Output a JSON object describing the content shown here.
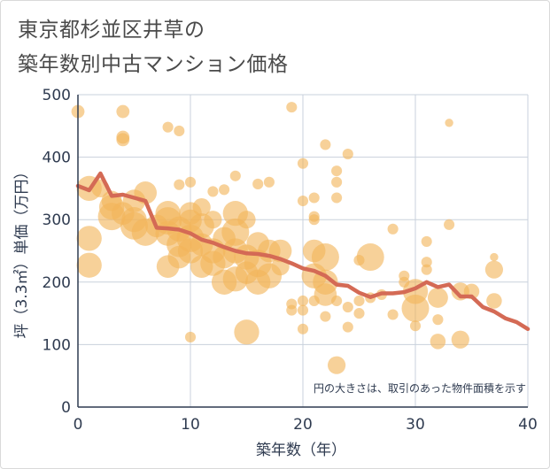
{
  "title_line1": "東京都杉並区井草の",
  "title_line2": "築年数別中古マンション価格",
  "chart_data": {
    "type": "scatter",
    "xlabel": "築年数（年）",
    "ylabel": "坪（3.3㎡）単価（万円）",
    "xlim": [
      0,
      40
    ],
    "ylim": [
      0,
      500
    ],
    "x_ticks": [
      0,
      10,
      20,
      30,
      40
    ],
    "y_ticks": [
      0,
      100,
      200,
      300,
      400,
      500
    ],
    "grid": true,
    "note": "円の大きさは、取引のあった物件面積を示す",
    "bubble_color": "#f2b45a",
    "line_color": "#d46a55",
    "bubbles": [
      {
        "x": 0,
        "y": 473,
        "size": 4
      },
      {
        "x": 1,
        "y": 350,
        "size": 9
      },
      {
        "x": 1,
        "y": 270,
        "size": 9
      },
      {
        "x": 1,
        "y": 227,
        "size": 9
      },
      {
        "x": 2,
        "y": 350,
        "size": 6
      },
      {
        "x": 3,
        "y": 320,
        "size": 9
      },
      {
        "x": 3,
        "y": 305,
        "size": 10
      },
      {
        "x": 3,
        "y": 330,
        "size": 7
      },
      {
        "x": 4,
        "y": 473,
        "size": 4
      },
      {
        "x": 4,
        "y": 432,
        "size": 4
      },
      {
        "x": 4,
        "y": 428,
        "size": 4
      },
      {
        "x": 4,
        "y": 310,
        "size": 8
      },
      {
        "x": 5,
        "y": 330,
        "size": 8
      },
      {
        "x": 5,
        "y": 300,
        "size": 9
      },
      {
        "x": 5,
        "y": 290,
        "size": 10
      },
      {
        "x": 6,
        "y": 343,
        "size": 8
      },
      {
        "x": 6,
        "y": 280,
        "size": 10
      },
      {
        "x": 7,
        "y": 290,
        "size": 8
      },
      {
        "x": 8,
        "y": 448,
        "size": 3
      },
      {
        "x": 8,
        "y": 310,
        "size": 9
      },
      {
        "x": 8,
        "y": 298,
        "size": 10
      },
      {
        "x": 8,
        "y": 278,
        "size": 9
      },
      {
        "x": 8,
        "y": 225,
        "size": 8
      },
      {
        "x": 9,
        "y": 442,
        "size": 3
      },
      {
        "x": 9,
        "y": 356,
        "size": 3
      },
      {
        "x": 9,
        "y": 285,
        "size": 9
      },
      {
        "x": 9,
        "y": 260,
        "size": 9
      },
      {
        "x": 9,
        "y": 240,
        "size": 8
      },
      {
        "x": 10,
        "y": 360,
        "size": 3
      },
      {
        "x": 10,
        "y": 310,
        "size": 8
      },
      {
        "x": 10,
        "y": 298,
        "size": 8
      },
      {
        "x": 10,
        "y": 270,
        "size": 10
      },
      {
        "x": 10,
        "y": 250,
        "size": 9
      },
      {
        "x": 10,
        "y": 112,
        "size": 3
      },
      {
        "x": 11,
        "y": 320,
        "size": 6
      },
      {
        "x": 11,
        "y": 290,
        "size": 9
      },
      {
        "x": 11,
        "y": 260,
        "size": 8
      },
      {
        "x": 11,
        "y": 225,
        "size": 8
      },
      {
        "x": 12,
        "y": 345,
        "size": 3
      },
      {
        "x": 12,
        "y": 300,
        "size": 6
      },
      {
        "x": 12,
        "y": 250,
        "size": 9
      },
      {
        "x": 12,
        "y": 230,
        "size": 9
      },
      {
        "x": 13,
        "y": 348,
        "size": 3
      },
      {
        "x": 13,
        "y": 270,
        "size": 8
      },
      {
        "x": 13,
        "y": 240,
        "size": 8
      },
      {
        "x": 13,
        "y": 200,
        "size": 9
      },
      {
        "x": 14,
        "y": 370,
        "size": 3
      },
      {
        "x": 14,
        "y": 310,
        "size": 9
      },
      {
        "x": 14,
        "y": 280,
        "size": 10
      },
      {
        "x": 14,
        "y": 250,
        "size": 9
      },
      {
        "x": 14,
        "y": 205,
        "size": 9
      },
      {
        "x": 15,
        "y": 300,
        "size": 6
      },
      {
        "x": 15,
        "y": 240,
        "size": 9
      },
      {
        "x": 15,
        "y": 215,
        "size": 8
      },
      {
        "x": 15,
        "y": 120,
        "size": 9
      },
      {
        "x": 16,
        "y": 357,
        "size": 3
      },
      {
        "x": 16,
        "y": 262,
        "size": 8
      },
      {
        "x": 16,
        "y": 230,
        "size": 10
      },
      {
        "x": 16,
        "y": 200,
        "size": 9
      },
      {
        "x": 17,
        "y": 360,
        "size": 3
      },
      {
        "x": 17,
        "y": 250,
        "size": 8
      },
      {
        "x": 17,
        "y": 210,
        "size": 9
      },
      {
        "x": 18,
        "y": 250,
        "size": 8
      },
      {
        "x": 18,
        "y": 225,
        "size": 6
      },
      {
        "x": 19,
        "y": 480,
        "size": 3
      },
      {
        "x": 19,
        "y": 165,
        "size": 3
      },
      {
        "x": 19,
        "y": 155,
        "size": 3
      },
      {
        "x": 20,
        "y": 390,
        "size": 3
      },
      {
        "x": 20,
        "y": 330,
        "size": 3
      },
      {
        "x": 20,
        "y": 170,
        "size": 3
      },
      {
        "x": 20,
        "y": 155,
        "size": 3
      },
      {
        "x": 20,
        "y": 125,
        "size": 3
      },
      {
        "x": 21,
        "y": 335,
        "size": 3
      },
      {
        "x": 21,
        "y": 305,
        "size": 3
      },
      {
        "x": 21,
        "y": 300,
        "size": 3
      },
      {
        "x": 21,
        "y": 250,
        "size": 8
      },
      {
        "x": 21,
        "y": 210,
        "size": 9
      },
      {
        "x": 21,
        "y": 170,
        "size": 3
      },
      {
        "x": 22,
        "y": 420,
        "size": 3
      },
      {
        "x": 22,
        "y": 240,
        "size": 10
      },
      {
        "x": 22,
        "y": 200,
        "size": 9
      },
      {
        "x": 22,
        "y": 180,
        "size": 8
      },
      {
        "x": 22,
        "y": 145,
        "size": 3
      },
      {
        "x": 23,
        "y": 378,
        "size": 3
      },
      {
        "x": 23,
        "y": 360,
        "size": 3
      },
      {
        "x": 23,
        "y": 335,
        "size": 3
      },
      {
        "x": 23,
        "y": 170,
        "size": 3
      },
      {
        "x": 23,
        "y": 67,
        "size": 6
      },
      {
        "x": 24,
        "y": 405,
        "size": 3
      },
      {
        "x": 24,
        "y": 160,
        "size": 3
      },
      {
        "x": 24,
        "y": 128,
        "size": 3
      },
      {
        "x": 25,
        "y": 235,
        "size": 3
      },
      {
        "x": 25,
        "y": 170,
        "size": 3
      },
      {
        "x": 25,
        "y": 150,
        "size": 3
      },
      {
        "x": 26,
        "y": 240,
        "size": 10
      },
      {
        "x": 26,
        "y": 175,
        "size": 3
      },
      {
        "x": 27,
        "y": 180,
        "size": 3
      },
      {
        "x": 28,
        "y": 285,
        "size": 3
      },
      {
        "x": 28,
        "y": 148,
        "size": 3
      },
      {
        "x": 29,
        "y": 210,
        "size": 3
      },
      {
        "x": 29,
        "y": 200,
        "size": 3
      },
      {
        "x": 30,
        "y": 185,
        "size": 9
      },
      {
        "x": 30,
        "y": 158,
        "size": 10
      },
      {
        "x": 30,
        "y": 130,
        "size": 3
      },
      {
        "x": 31,
        "y": 265,
        "size": 3
      },
      {
        "x": 31,
        "y": 232,
        "size": 3
      },
      {
        "x": 31,
        "y": 220,
        "size": 3
      },
      {
        "x": 32,
        "y": 175,
        "size": 7
      },
      {
        "x": 32,
        "y": 140,
        "size": 3
      },
      {
        "x": 32,
        "y": 105,
        "size": 5
      },
      {
        "x": 33,
        "y": 455,
        "size": 2
      },
      {
        "x": 33,
        "y": 292,
        "size": 3
      },
      {
        "x": 34,
        "y": 185,
        "size": 6
      },
      {
        "x": 34,
        "y": 108,
        "size": 6
      },
      {
        "x": 35,
        "y": 185,
        "size": 5
      },
      {
        "x": 37,
        "y": 240,
        "size": 2
      },
      {
        "x": 37,
        "y": 220,
        "size": 6
      },
      {
        "x": 37,
        "y": 170,
        "size": 5
      }
    ],
    "trend_line": [
      {
        "x": 0,
        "y": 354
      },
      {
        "x": 1,
        "y": 347
      },
      {
        "x": 2,
        "y": 374
      },
      {
        "x": 3,
        "y": 338
      },
      {
        "x": 4,
        "y": 340
      },
      {
        "x": 5,
        "y": 335
      },
      {
        "x": 6,
        "y": 330
      },
      {
        "x": 7,
        "y": 287
      },
      {
        "x": 8,
        "y": 286
      },
      {
        "x": 9,
        "y": 284
      },
      {
        "x": 10,
        "y": 278
      },
      {
        "x": 11,
        "y": 268
      },
      {
        "x": 12,
        "y": 263
      },
      {
        "x": 13,
        "y": 256
      },
      {
        "x": 14,
        "y": 250
      },
      {
        "x": 15,
        "y": 246
      },
      {
        "x": 16,
        "y": 245
      },
      {
        "x": 17,
        "y": 242
      },
      {
        "x": 18,
        "y": 237
      },
      {
        "x": 19,
        "y": 230
      },
      {
        "x": 20,
        "y": 222
      },
      {
        "x": 21,
        "y": 218
      },
      {
        "x": 22,
        "y": 210
      },
      {
        "x": 23,
        "y": 196
      },
      {
        "x": 24,
        "y": 194
      },
      {
        "x": 25,
        "y": 183
      },
      {
        "x": 26,
        "y": 176
      },
      {
        "x": 27,
        "y": 182
      },
      {
        "x": 28,
        "y": 182
      },
      {
        "x": 29,
        "y": 184
      },
      {
        "x": 30,
        "y": 190
      },
      {
        "x": 31,
        "y": 200
      },
      {
        "x": 32,
        "y": 192
      },
      {
        "x": 33,
        "y": 196
      },
      {
        "x": 34,
        "y": 177
      },
      {
        "x": 35,
        "y": 177
      },
      {
        "x": 36,
        "y": 160
      },
      {
        "x": 37,
        "y": 153
      },
      {
        "x": 38,
        "y": 142
      },
      {
        "x": 39,
        "y": 136
      },
      {
        "x": 40,
        "y": 125
      }
    ]
  }
}
